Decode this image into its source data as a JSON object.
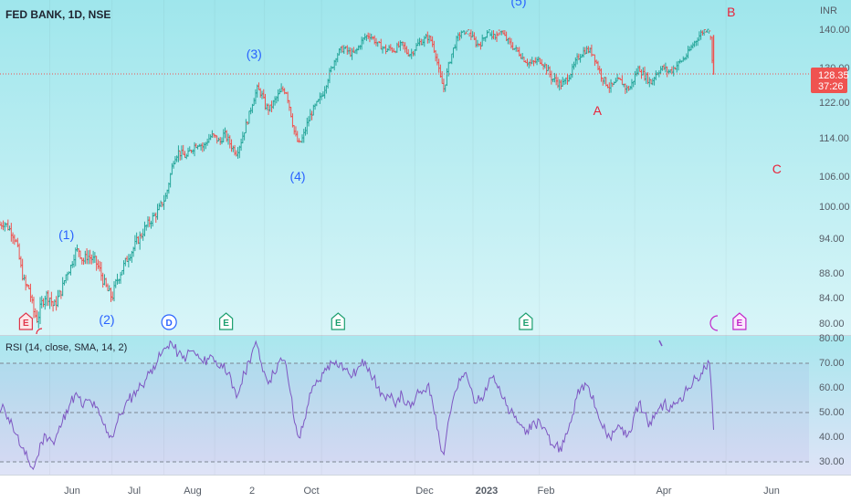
{
  "symbol_title": "FED BANK, 1D, NSE",
  "currency": "INR",
  "last_price": "128.35",
  "countdown": "37:26",
  "rsi_title": "RSI (14, close, SMA, 14, 2)",
  "colors": {
    "up": "#26a69a",
    "down": "#ef5350",
    "wave_blue": "#2962ff",
    "wave_red": "#e8233a",
    "rsi_line": "#7e57c2",
    "price_tag": "#ef5350"
  },
  "x_axis_labels": [
    "Jun",
    "Jul",
    "Aug",
    "2",
    "Oct",
    "Dec",
    "2023",
    "Feb",
    "Apr",
    "Jun"
  ],
  "price_axis_labels": [
    "140.00",
    "130.00",
    "122.00",
    "114.00",
    "106.00",
    "100.00",
    "94.00",
    "88.00",
    "84.00",
    "80.00"
  ],
  "rsi_axis_labels": [
    "80.00",
    "70.00",
    "60.00",
    "50.00",
    "40.00",
    "30.00"
  ],
  "wave_labels": [
    {
      "text": "(1)",
      "color": "blue",
      "day": 64
    },
    {
      "text": "(2)",
      "color": "blue",
      "day": 103
    },
    {
      "text": "(3)",
      "color": "blue",
      "day": 245
    },
    {
      "text": "(4)",
      "color": "blue",
      "day": 287
    },
    {
      "text": "(5)",
      "color": "blue",
      "day": 500
    },
    {
      "text": "A",
      "color": "red",
      "day": 576
    },
    {
      "text": "B",
      "color": "red",
      "day": 705
    },
    {
      "text": "C",
      "color": "red",
      "day": 749
    }
  ],
  "event_badges": [
    {
      "letter": "E",
      "type": "earnings-red",
      "day": 25
    },
    {
      "letter": "D",
      "type": "dividend",
      "day": 163
    },
    {
      "letter": "E",
      "type": "earnings",
      "day": 218
    },
    {
      "letter": "E",
      "type": "earnings",
      "day": 326
    },
    {
      "letter": "E",
      "type": "earnings",
      "day": 507
    },
    {
      "letter": "E",
      "type": "earnings-purple",
      "day": 713
    }
  ],
  "chart_data": {
    "type": "ohlc",
    "title": "FED BANK, 1D, NSE",
    "x_unit": "trading days",
    "price_range": [
      79,
      150
    ],
    "rsi_range": [
      24,
      81
    ],
    "rsi_levels": [
      70,
      50,
      30
    ],
    "last_value": 128.35,
    "price_series": [
      [
        0,
        96.5
      ],
      [
        4,
        97.0
      ],
      [
        8,
        96.0
      ],
      [
        12,
        95.0
      ],
      [
        16,
        93.0
      ],
      [
        20,
        89.0
      ],
      [
        24,
        86.0
      ],
      [
        28,
        85.5
      ],
      [
        32,
        82.0
      ],
      [
        36,
        80.5
      ],
      [
        40,
        83.0
      ],
      [
        44,
        84.5
      ],
      [
        48,
        84.0
      ],
      [
        52,
        82.5
      ],
      [
        56,
        84.0
      ],
      [
        60,
        85.5
      ],
      [
        64,
        88.0
      ],
      [
        68,
        89.0
      ],
      [
        72,
        91.5
      ],
      [
        76,
        92.0
      ],
      [
        80,
        90.0
      ],
      [
        84,
        91.0
      ],
      [
        88,
        90.5
      ],
      [
        92,
        90.0
      ],
      [
        96,
        88.5
      ],
      [
        100,
        86.5
      ],
      [
        104,
        85.0
      ],
      [
        108,
        84.0
      ],
      [
        112,
        86.5
      ],
      [
        116,
        88.0
      ],
      [
        120,
        89.5
      ],
      [
        124,
        91.0
      ],
      [
        128,
        92.0
      ],
      [
        132,
        93.5
      ],
      [
        136,
        94.5
      ],
      [
        140,
        96.0
      ],
      [
        144,
        97.0
      ],
      [
        148,
        98.0
      ],
      [
        152,
        99.0
      ],
      [
        156,
        100.5
      ],
      [
        160,
        102.0
      ],
      [
        164,
        106.0
      ],
      [
        168,
        110.0
      ],
      [
        172,
        111.0
      ],
      [
        176,
        110.5
      ],
      [
        180,
        110.0
      ],
      [
        184,
        111.5
      ],
      [
        188,
        112.5
      ],
      [
        192,
        113.0
      ],
      [
        196,
        112.0
      ],
      [
        200,
        113.5
      ],
      [
        204,
        114.5
      ],
      [
        208,
        114.0
      ],
      [
        212,
        113.0
      ],
      [
        216,
        115.0
      ],
      [
        220,
        113.5
      ],
      [
        224,
        112.0
      ],
      [
        228,
        111.0
      ],
      [
        232,
        113.0
      ],
      [
        236,
        116.0
      ],
      [
        240,
        119.0
      ],
      [
        244,
        122.5
      ],
      [
        248,
        125.0
      ],
      [
        252,
        124.0
      ],
      [
        256,
        121.0
      ],
      [
        260,
        120.5
      ],
      [
        264,
        122.0
      ],
      [
        268,
        123.5
      ],
      [
        272,
        125.0
      ],
      [
        276,
        124.5
      ],
      [
        280,
        120.0
      ],
      [
        284,
        115.0
      ],
      [
        288,
        112.5
      ],
      [
        292,
        114.0
      ],
      [
        296,
        117.0
      ],
      [
        300,
        119.5
      ],
      [
        304,
        121.0
      ],
      [
        308,
        122.5
      ],
      [
        312,
        124.5
      ],
      [
        316,
        127.5
      ],
      [
        320,
        130.0
      ],
      [
        324,
        133.0
      ],
      [
        328,
        134.5
      ],
      [
        332,
        135.0
      ],
      [
        336,
        134.0
      ],
      [
        340,
        133.5
      ],
      [
        344,
        134.5
      ],
      [
        348,
        136.5
      ],
      [
        352,
        138.0
      ],
      [
        356,
        138.5
      ],
      [
        360,
        137.5
      ],
      [
        364,
        136.0
      ],
      [
        368,
        135.5
      ],
      [
        372,
        134.5
      ],
      [
        376,
        135.0
      ],
      [
        380,
        134.5
      ],
      [
        384,
        135.5
      ],
      [
        388,
        136.0
      ],
      [
        392,
        134.0
      ],
      [
        396,
        133.5
      ],
      [
        400,
        135.0
      ],
      [
        404,
        136.5
      ],
      [
        408,
        137.0
      ],
      [
        412,
        138.0
      ],
      [
        416,
        137.0
      ],
      [
        420,
        133.5
      ],
      [
        424,
        128.0
      ],
      [
        428,
        125.0
      ],
      [
        432,
        130.0
      ],
      [
        436,
        134.0
      ],
      [
        440,
        137.0
      ],
      [
        444,
        139.0
      ],
      [
        448,
        140.5
      ],
      [
        452,
        139.5
      ],
      [
        456,
        137.5
      ],
      [
        460,
        136.0
      ],
      [
        464,
        136.5
      ],
      [
        468,
        138.5
      ],
      [
        472,
        141.0
      ],
      [
        476,
        142.0
      ],
      [
        480,
        140.5
      ],
      [
        484,
        139.0
      ],
      [
        488,
        137.5
      ],
      [
        492,
        136.0
      ],
      [
        496,
        135.0
      ],
      [
        500,
        134.0
      ],
      [
        504,
        132.5
      ],
      [
        508,
        131.5
      ],
      [
        512,
        131.0
      ],
      [
        516,
        131.5
      ],
      [
        520,
        132.0
      ],
      [
        524,
        131.0
      ],
      [
        528,
        129.5
      ],
      [
        532,
        127.5
      ],
      [
        536,
        127.0
      ],
      [
        540,
        126.0
      ],
      [
        544,
        126.5
      ],
      [
        548,
        128.0
      ],
      [
        552,
        129.5
      ],
      [
        556,
        132.0
      ],
      [
        560,
        133.5
      ],
      [
        564,
        134.5
      ],
      [
        568,
        134.5
      ],
      [
        572,
        133.5
      ],
      [
        576,
        130.5
      ],
      [
        580,
        128.0
      ],
      [
        584,
        126.5
      ],
      [
        588,
        125.5
      ],
      [
        592,
        126.0
      ],
      [
        596,
        127.0
      ],
      [
        600,
        126.5
      ],
      [
        604,
        125.0
      ],
      [
        608,
        125.5
      ],
      [
        612,
        128.0
      ],
      [
        616,
        130.0
      ],
      [
        620,
        128.5
      ],
      [
        624,
        127.5
      ],
      [
        628,
        126.5
      ],
      [
        632,
        128.5
      ],
      [
        636,
        129.5
      ],
      [
        640,
        130.0
      ],
      [
        644,
        129.0
      ],
      [
        648,
        129.5
      ],
      [
        652,
        130.5
      ],
      [
        656,
        131.5
      ],
      [
        660,
        132.5
      ],
      [
        664,
        134.0
      ],
      [
        668,
        136.0
      ],
      [
        672,
        137.5
      ],
      [
        676,
        139.0
      ],
      [
        680,
        140.0
      ],
      [
        684,
        141.0
      ],
      [
        688,
        128.35
      ]
    ],
    "rsi_series": [
      [
        0,
        50
      ],
      [
        4,
        52
      ],
      [
        8,
        48
      ],
      [
        12,
        45
      ],
      [
        16,
        41
      ],
      [
        20,
        36
      ],
      [
        24,
        33
      ],
      [
        28,
        30
      ],
      [
        32,
        27
      ],
      [
        36,
        32
      ],
      [
        40,
        38
      ],
      [
        44,
        41
      ],
      [
        48,
        40
      ],
      [
        52,
        37
      ],
      [
        56,
        42
      ],
      [
        60,
        46
      ],
      [
        64,
        51
      ],
      [
        68,
        54
      ],
      [
        72,
        57
      ],
      [
        76,
        56
      ],
      [
        80,
        52
      ],
      [
        84,
        55
      ],
      [
        88,
        54
      ],
      [
        92,
        52
      ],
      [
        96,
        49
      ],
      [
        100,
        45
      ],
      [
        104,
        42
      ],
      [
        108,
        40
      ],
      [
        112,
        45
      ],
      [
        116,
        49
      ],
      [
        120,
        52
      ],
      [
        124,
        55
      ],
      [
        128,
        57
      ],
      [
        132,
        59
      ],
      [
        136,
        61
      ],
      [
        140,
        63
      ],
      [
        144,
        66
      ],
      [
        148,
        69
      ],
      [
        152,
        71
      ],
      [
        156,
        74
      ],
      [
        160,
        76
      ],
      [
        164,
        79
      ],
      [
        168,
        76
      ],
      [
        172,
        74
      ],
      [
        176,
        72
      ],
      [
        180,
        73
      ],
      [
        184,
        75
      ],
      [
        188,
        74
      ],
      [
        192,
        72
      ],
      [
        196,
        70
      ],
      [
        200,
        72
      ],
      [
        204,
        73
      ],
      [
        208,
        71
      ],
      [
        212,
        68
      ],
      [
        216,
        70
      ],
      [
        220,
        66
      ],
      [
        224,
        60
      ],
      [
        228,
        56
      ],
      [
        232,
        61
      ],
      [
        236,
        66
      ],
      [
        240,
        71
      ],
      [
        244,
        76
      ],
      [
        248,
        77
      ],
      [
        252,
        70
      ],
      [
        256,
        65
      ],
      [
        260,
        63
      ],
      [
        264,
        66
      ],
      [
        268,
        70
      ],
      [
        272,
        71
      ],
      [
        276,
        69
      ],
      [
        280,
        58
      ],
      [
        284,
        46
      ],
      [
        288,
        40
      ],
      [
        292,
        44
      ],
      [
        296,
        52
      ],
      [
        300,
        58
      ],
      [
        304,
        61
      ],
      [
        308,
        63
      ],
      [
        312,
        66
      ],
      [
        316,
        69
      ],
      [
        320,
        70
      ],
      [
        324,
        71
      ],
      [
        328,
        70
      ],
      [
        332,
        68
      ],
      [
        336,
        66
      ],
      [
        340,
        65
      ],
      [
        344,
        67
      ],
      [
        348,
        69
      ],
      [
        352,
        71
      ],
      [
        356,
        68
      ],
      [
        360,
        64
      ],
      [
        364,
        60
      ],
      [
        368,
        58
      ],
      [
        372,
        55
      ],
      [
        376,
        56
      ],
      [
        380,
        54
      ],
      [
        384,
        56
      ],
      [
        388,
        57
      ],
      [
        392,
        53
      ],
      [
        396,
        52
      ],
      [
        400,
        55
      ],
      [
        404,
        58
      ],
      [
        408,
        59
      ],
      [
        412,
        61
      ],
      [
        416,
        57
      ],
      [
        420,
        49
      ],
      [
        424,
        38
      ],
      [
        428,
        33
      ],
      [
        432,
        46
      ],
      [
        436,
        54
      ],
      [
        440,
        59
      ],
      [
        444,
        63
      ],
      [
        448,
        66
      ],
      [
        452,
        62
      ],
      [
        456,
        57
      ],
      [
        460,
        54
      ],
      [
        464,
        56
      ],
      [
        468,
        60
      ],
      [
        472,
        64
      ],
      [
        476,
        65
      ],
      [
        480,
        60
      ],
      [
        484,
        56
      ],
      [
        488,
        53
      ],
      [
        492,
        50
      ],
      [
        496,
        48
      ],
      [
        500,
        46
      ],
      [
        504,
        44
      ],
      [
        508,
        43
      ],
      [
        512,
        43
      ],
      [
        516,
        45
      ],
      [
        520,
        47
      ],
      [
        524,
        44
      ],
      [
        528,
        41
      ],
      [
        532,
        37
      ],
      [
        536,
        37
      ],
      [
        540,
        36
      ],
      [
        544,
        38
      ],
      [
        548,
        43
      ],
      [
        552,
        49
      ],
      [
        556,
        56
      ],
      [
        560,
        60
      ],
      [
        564,
        62
      ],
      [
        568,
        60
      ],
      [
        572,
        57
      ],
      [
        576,
        50
      ],
      [
        580,
        45
      ],
      [
        584,
        42
      ],
      [
        588,
        40
      ],
      [
        592,
        42
      ],
      [
        596,
        45
      ],
      [
        600,
        44
      ],
      [
        604,
        40
      ],
      [
        608,
        42
      ],
      [
        612,
        50
      ],
      [
        616,
        54
      ],
      [
        620,
        50
      ],
      [
        624,
        47
      ],
      [
        628,
        45
      ],
      [
        632,
        50
      ],
      [
        636,
        52
      ],
      [
        640,
        54
      ],
      [
        644,
        51
      ],
      [
        648,
        52
      ],
      [
        652,
        54
      ],
      [
        656,
        56
      ],
      [
        660,
        58
      ],
      [
        664,
        60
      ],
      [
        668,
        62
      ],
      [
        672,
        64
      ],
      [
        676,
        66
      ],
      [
        680,
        68
      ],
      [
        684,
        70
      ],
      [
        688,
        43
      ]
    ]
  }
}
